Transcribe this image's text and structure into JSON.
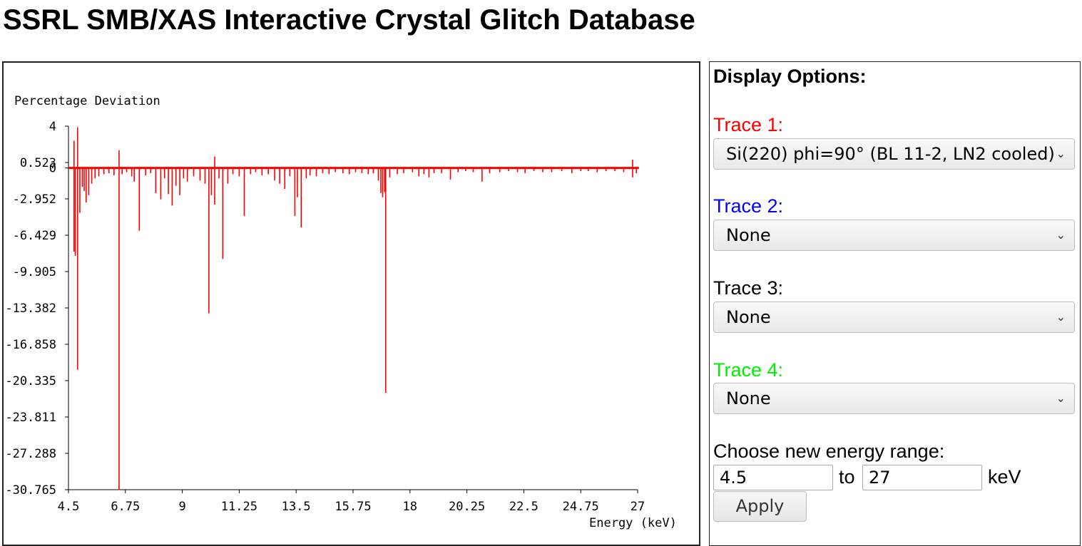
{
  "page": {
    "title": "SSRL SMB/XAS Interactive Crystal Glitch Database"
  },
  "options": {
    "heading": "Display Options:",
    "traces": [
      {
        "label": "Trace 1:",
        "color": "#ff0000",
        "selected": "Si(220) phi=90° (BL 11-2, LN2 cooled)"
      },
      {
        "label": "Trace 2:",
        "color": "#0000ff",
        "selected": "None"
      },
      {
        "label": "Trace 3:",
        "color": "#000000",
        "selected": "None"
      },
      {
        "label": "Trace 4:",
        "color": "#00ee00",
        "selected": "None"
      }
    ],
    "range": {
      "label": "Choose new energy range:",
      "from_value": "4.5",
      "to_text": "to",
      "to_value": "27",
      "unit": "keV",
      "apply_label": "Apply"
    },
    "select_chevron_icon": "chevron-down-icon"
  },
  "chart_data": {
    "type": "line",
    "ylabel": "Percentage Deviation",
    "xlabel": "Energy (keV)",
    "xlim": [
      4.5,
      27
    ],
    "ylim": [
      -30.765,
      4
    ],
    "x_ticks": [
      "4.5",
      "6.75",
      "9",
      "11.25",
      "13.5",
      "15.75",
      "18",
      "20.25",
      "22.5",
      "24.75",
      "27"
    ],
    "y_ticks": [
      "4",
      "0.523",
      "0",
      "-2.952",
      "-6.429",
      "-9.905",
      "-13.382",
      "-16.858",
      "-20.335",
      "-23.811",
      "-27.288",
      "-30.765"
    ],
    "y_tick_values": [
      4,
      0.523,
      0,
      -2.952,
      -6.429,
      -9.905,
      -13.382,
      -16.858,
      -20.335,
      -23.811,
      -27.288,
      -30.765
    ],
    "grid": false,
    "series": [
      {
        "color": "#ff0000",
        "baseline": 0,
        "x_end": 27.05,
        "glitches": [
          [
            4.72,
            2.6
          ],
          [
            4.72,
            -8.0
          ],
          [
            4.77,
            -8.4
          ],
          [
            4.86,
            3.9
          ],
          [
            4.86,
            -19.3
          ],
          [
            4.95,
            -4.3
          ],
          [
            5.05,
            -1.8
          ],
          [
            5.12,
            -2.2
          ],
          [
            5.2,
            -3.3
          ],
          [
            5.3,
            -2.6
          ],
          [
            5.42,
            -1.5
          ],
          [
            5.55,
            -1.0
          ],
          [
            5.7,
            -0.8
          ],
          [
            5.9,
            -0.6
          ],
          [
            6.1,
            -0.5
          ],
          [
            6.3,
            -0.7
          ],
          [
            6.5,
            1.7
          ],
          [
            6.5,
            -30.8
          ],
          [
            6.62,
            -0.6
          ],
          [
            6.8,
            -0.4
          ],
          [
            7.0,
            -0.8
          ],
          [
            7.1,
            -1.3
          ],
          [
            7.3,
            -6.0
          ],
          [
            7.55,
            -0.7
          ],
          [
            7.75,
            -0.5
          ],
          [
            7.95,
            -2.4
          ],
          [
            8.15,
            -3.0
          ],
          [
            8.3,
            -1.0
          ],
          [
            8.45,
            -2.5
          ],
          [
            8.6,
            -3.6
          ],
          [
            8.75,
            -1.7
          ],
          [
            8.9,
            -2.6
          ],
          [
            9.05,
            -1.0
          ],
          [
            9.2,
            -1.3
          ],
          [
            9.45,
            -0.8
          ],
          [
            9.7,
            -1.2
          ],
          [
            9.9,
            -1.5
          ],
          [
            10.05,
            -13.9
          ],
          [
            10.15,
            -2.6
          ],
          [
            10.28,
            1.1
          ],
          [
            10.28,
            -3.5
          ],
          [
            10.45,
            -1.0
          ],
          [
            10.6,
            -8.7
          ],
          [
            10.8,
            -1.5
          ],
          [
            11.0,
            -0.6
          ],
          [
            11.25,
            -0.8
          ],
          [
            11.45,
            -4.6
          ],
          [
            11.7,
            -0.6
          ],
          [
            11.9,
            -0.4
          ],
          [
            12.15,
            -0.7
          ],
          [
            12.4,
            -0.6
          ],
          [
            12.65,
            -1.2
          ],
          [
            12.85,
            -1.5
          ],
          [
            13.05,
            -2.0
          ],
          [
            13.25,
            -0.8
          ],
          [
            13.45,
            -4.6
          ],
          [
            13.55,
            -2.8
          ],
          [
            13.7,
            -5.7
          ],
          [
            13.9,
            -1.0
          ],
          [
            14.05,
            -0.7
          ],
          [
            14.3,
            -0.8
          ],
          [
            14.55,
            -0.5
          ],
          [
            14.8,
            -0.6
          ],
          [
            15.05,
            -0.4
          ],
          [
            15.35,
            -0.5
          ],
          [
            15.6,
            -0.6
          ],
          [
            15.85,
            -0.4
          ],
          [
            16.1,
            -0.5
          ],
          [
            16.35,
            -0.6
          ],
          [
            16.55,
            -0.5
          ],
          [
            16.75,
            -1.2
          ],
          [
            16.85,
            -2.4
          ],
          [
            16.92,
            -2.8
          ],
          [
            17.0,
            -2.3
          ],
          [
            17.04,
            -21.5
          ],
          [
            17.2,
            -0.9
          ],
          [
            17.5,
            -0.6
          ],
          [
            17.75,
            -0.5
          ],
          [
            18.1,
            -0.4
          ],
          [
            18.35,
            -0.8
          ],
          [
            18.55,
            -0.6
          ],
          [
            18.75,
            -0.9
          ],
          [
            18.95,
            -0.5
          ],
          [
            19.25,
            -0.5
          ],
          [
            19.6,
            -1.1
          ],
          [
            19.9,
            -0.4
          ],
          [
            20.2,
            -0.3
          ],
          [
            20.5,
            -0.4
          ],
          [
            20.85,
            -1.3
          ],
          [
            21.15,
            -0.5
          ],
          [
            21.55,
            -0.4
          ],
          [
            21.9,
            -0.3
          ],
          [
            22.25,
            -0.4
          ],
          [
            22.55,
            -0.5
          ],
          [
            22.9,
            -0.3
          ],
          [
            23.25,
            -0.4
          ],
          [
            23.6,
            -0.4
          ],
          [
            24.0,
            -0.3
          ],
          [
            24.4,
            -0.5
          ],
          [
            24.75,
            -0.3
          ],
          [
            25.05,
            -0.3
          ],
          [
            25.4,
            -0.4
          ],
          [
            25.75,
            -0.3
          ],
          [
            26.1,
            -0.3
          ],
          [
            26.45,
            -0.4
          ],
          [
            26.8,
            0.8
          ],
          [
            26.8,
            -0.9
          ],
          [
            26.95,
            -0.5
          ]
        ]
      }
    ]
  }
}
